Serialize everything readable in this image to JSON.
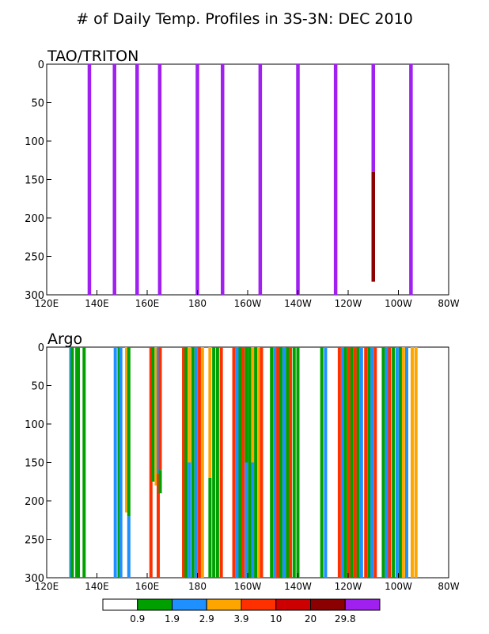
{
  "title": "# of Daily Temp. Profiles in 3S-3N: DEC 2010",
  "chart_data": [
    {
      "type": "bar",
      "panel": "TAO/TRITON",
      "xlim": [
        120,
        280
      ],
      "ylim": [
        0,
        300
      ],
      "yaxis_inverted": true,
      "grid": false,
      "x_ticks": [
        120,
        140,
        160,
        180,
        200,
        220,
        240,
        260,
        280
      ],
      "x_tick_labels": [
        "120E",
        "140E",
        "160E",
        "180",
        "160W",
        "140W",
        "120W",
        "100W",
        "80W"
      ],
      "y_ticks": [
        0,
        50,
        100,
        150,
        200,
        250,
        300
      ],
      "bars": [
        {
          "lon": 137,
          "segments": [
            {
              "top": 0,
              "bottom": 300,
              "color": "#a020f0"
            }
          ]
        },
        {
          "lon": 147,
          "segments": [
            {
              "top": 0,
              "bottom": 300,
              "color": "#a020f0"
            }
          ]
        },
        {
          "lon": 156,
          "segments": [
            {
              "top": 0,
              "bottom": 300,
              "color": "#a020f0"
            }
          ]
        },
        {
          "lon": 165,
          "segments": [
            {
              "top": 0,
              "bottom": 300,
              "color": "#a020f0"
            }
          ]
        },
        {
          "lon": 180,
          "segments": [
            {
              "top": 0,
              "bottom": 300,
              "color": "#a020f0"
            }
          ]
        },
        {
          "lon": 190,
          "segments": [
            {
              "top": 0,
              "bottom": 300,
              "color": "#a020f0"
            }
          ]
        },
        {
          "lon": 205,
          "segments": [
            {
              "top": 0,
              "bottom": 300,
              "color": "#a020f0"
            }
          ]
        },
        {
          "lon": 220,
          "segments": [
            {
              "top": 0,
              "bottom": 300,
              "color": "#a020f0"
            }
          ]
        },
        {
          "lon": 235,
          "segments": [
            {
              "top": 0,
              "bottom": 300,
              "color": "#a020f0"
            }
          ]
        },
        {
          "lon": 250,
          "segments": [
            {
              "top": 0,
              "bottom": 140,
              "color": "#a020f0"
            },
            {
              "top": 140,
              "bottom": 283,
              "color": "#8b0000"
            }
          ]
        },
        {
          "lon": 265,
          "segments": [
            {
              "top": 0,
              "bottom": 300,
              "color": "#a020f0"
            }
          ]
        }
      ]
    },
    {
      "type": "bar",
      "panel": "Argo",
      "xlim": [
        120,
        280
      ],
      "ylim": [
        0,
        300
      ],
      "yaxis_inverted": true,
      "grid": false,
      "x_ticks": [
        120,
        140,
        160,
        180,
        200,
        220,
        240,
        260,
        280
      ],
      "x_tick_labels": [
        "120E",
        "140E",
        "160E",
        "180",
        "160W",
        "140W",
        "120W",
        "100W",
        "80W"
      ],
      "y_ticks": [
        0,
        50,
        100,
        150,
        200,
        250,
        300
      ],
      "bars": [
        {
          "lon": 129.6,
          "segments": [
            {
              "top": 0,
              "bottom": 300,
              "color": "#1e90ff"
            }
          ]
        },
        {
          "lon": 130.2,
          "segments": [
            {
              "top": 0,
              "bottom": 300,
              "color": "#00a000"
            }
          ]
        },
        {
          "lon": 132.0,
          "segments": [
            {
              "top": 0,
              "bottom": 300,
              "color": "#00a000"
            }
          ]
        },
        {
          "lon": 132.6,
          "segments": [
            {
              "top": 0,
              "bottom": 300,
              "color": "#00a000"
            }
          ]
        },
        {
          "lon": 134.9,
          "segments": [
            {
              "top": 0,
              "bottom": 300,
              "color": "#00a000"
            }
          ]
        },
        {
          "lon": 147.3,
          "segments": [
            {
              "top": 0,
              "bottom": 300,
              "color": "#1e90ff"
            }
          ]
        },
        {
          "lon": 148.8,
          "segments": [
            {
              "top": 0,
              "bottom": 300,
              "color": "#00a000"
            }
          ]
        },
        {
          "lon": 149.5,
          "segments": [
            {
              "top": 0,
              "bottom": 300,
              "color": "#1e90ff"
            }
          ]
        },
        {
          "lon": 151.8,
          "segments": [
            {
              "top": 0,
              "bottom": 215,
              "color": "#ffa500"
            },
            {
              "top": 215,
              "bottom": 300,
              "color": "#ffffff"
            }
          ]
        },
        {
          "lon": 152.7,
          "segments": [
            {
              "top": 0,
              "bottom": 220,
              "color": "#00a000"
            },
            {
              "top": 220,
              "bottom": 300,
              "color": "#1e90ff"
            }
          ]
        },
        {
          "lon": 161.5,
          "segments": [
            {
              "top": 0,
              "bottom": 300,
              "color": "#ff3000"
            }
          ]
        },
        {
          "lon": 162.3,
          "segments": [
            {
              "top": 0,
              "bottom": 175,
              "color": "#00a000"
            },
            {
              "top": 175,
              "bottom": 300,
              "color": "#ffffff"
            }
          ]
        },
        {
          "lon": 163.6,
          "segments": [
            {
              "top": 0,
              "bottom": 180,
              "color": "#ffa500"
            },
            {
              "top": 180,
              "bottom": 300,
              "color": "#ffffff"
            }
          ]
        },
        {
          "lon": 164.4,
          "segments": [
            {
              "top": 0,
              "bottom": 165,
              "color": "#1e90ff"
            },
            {
              "top": 165,
              "bottom": 300,
              "color": "#ff3000"
            }
          ]
        },
        {
          "lon": 165.2,
          "segments": [
            {
              "top": 0,
              "bottom": 160,
              "color": "#ff3000"
            },
            {
              "top": 160,
              "bottom": 190,
              "color": "#00a000"
            },
            {
              "top": 190,
              "bottom": 300,
              "color": "#ffffff"
            }
          ]
        },
        {
          "lon": 174.5,
          "segments": [
            {
              "top": 0,
              "bottom": 300,
              "color": "#ff3000"
            }
          ]
        },
        {
          "lon": 175.5,
          "segments": [
            {
              "top": 0,
              "bottom": 300,
              "color": "#00a000"
            }
          ]
        },
        {
          "lon": 176.8,
          "segments": [
            {
              "top": 0,
              "bottom": 150,
              "color": "#ffa500"
            },
            {
              "top": 150,
              "bottom": 300,
              "color": "#1e90ff"
            }
          ]
        },
        {
          "lon": 178.2,
          "segments": [
            {
              "top": 0,
              "bottom": 300,
              "color": "#00a000"
            }
          ]
        },
        {
          "lon": 179.5,
          "segments": [
            {
              "top": 0,
              "bottom": 300,
              "color": "#1e90ff"
            }
          ]
        },
        {
          "lon": 180.8,
          "segments": [
            {
              "top": 0,
              "bottom": 300,
              "color": "#ff3000"
            }
          ]
        },
        {
          "lon": 182.0,
          "segments": [
            {
              "top": 0,
              "bottom": 300,
              "color": "#ffa500"
            }
          ]
        },
        {
          "lon": 185.0,
          "segments": [
            {
              "top": 0,
              "bottom": 170,
              "color": "#ffa500"
            },
            {
              "top": 170,
              "bottom": 300,
              "color": "#00a000"
            }
          ]
        },
        {
          "lon": 186.5,
          "segments": [
            {
              "top": 0,
              "bottom": 300,
              "color": "#00a000"
            }
          ]
        },
        {
          "lon": 188.0,
          "segments": [
            {
              "top": 0,
              "bottom": 300,
              "color": "#00a000"
            }
          ]
        },
        {
          "lon": 189.5,
          "segments": [
            {
              "top": 0,
              "bottom": 300,
              "color": "#ff3000"
            }
          ]
        },
        {
          "lon": 194.5,
          "segments": [
            {
              "top": 0,
              "bottom": 300,
              "color": "#ff3000"
            }
          ]
        },
        {
          "lon": 195.8,
          "segments": [
            {
              "top": 0,
              "bottom": 300,
              "color": "#1e90ff"
            }
          ]
        },
        {
          "lon": 197.0,
          "segments": [
            {
              "top": 0,
              "bottom": 300,
              "color": "#00a000"
            }
          ]
        },
        {
          "lon": 198.2,
          "segments": [
            {
              "top": 0,
              "bottom": 300,
              "color": "#ff3000"
            }
          ]
        },
        {
          "lon": 199.5,
          "segments": [
            {
              "top": 0,
              "bottom": 150,
              "color": "#00a000"
            },
            {
              "top": 150,
              "bottom": 300,
              "color": "#1e90ff"
            }
          ]
        },
        {
          "lon": 200.8,
          "segments": [
            {
              "top": 0,
              "bottom": 300,
              "color": "#00a000"
            }
          ]
        },
        {
          "lon": 202.0,
          "segments": [
            {
              "top": 0,
              "bottom": 150,
              "color": "#ffa500"
            },
            {
              "top": 150,
              "bottom": 300,
              "color": "#1e90ff"
            }
          ]
        },
        {
          "lon": 203.2,
          "segments": [
            {
              "top": 0,
              "bottom": 300,
              "color": "#00a000"
            }
          ]
        },
        {
          "lon": 204.5,
          "segments": [
            {
              "top": 0,
              "bottom": 300,
              "color": "#ffa500"
            }
          ]
        },
        {
          "lon": 205.5,
          "segments": [
            {
              "top": 0,
              "bottom": 300,
              "color": "#ff3000"
            }
          ]
        },
        {
          "lon": 209.5,
          "segments": [
            {
              "top": 0,
              "bottom": 300,
              "color": "#00a000"
            }
          ]
        },
        {
          "lon": 210.8,
          "segments": [
            {
              "top": 0,
              "bottom": 300,
              "color": "#1e90ff"
            }
          ]
        },
        {
          "lon": 212.0,
          "segments": [
            {
              "top": 0,
              "bottom": 300,
              "color": "#ff3000"
            }
          ]
        },
        {
          "lon": 213.2,
          "segments": [
            {
              "top": 0,
              "bottom": 300,
              "color": "#00a000"
            }
          ]
        },
        {
          "lon": 214.5,
          "segments": [
            {
              "top": 0,
              "bottom": 300,
              "color": "#1e90ff"
            }
          ]
        },
        {
          "lon": 215.8,
          "segments": [
            {
              "top": 0,
              "bottom": 300,
              "color": "#00a000"
            }
          ]
        },
        {
          "lon": 217.0,
          "segments": [
            {
              "top": 0,
              "bottom": 300,
              "color": "#ff3000"
            }
          ]
        },
        {
          "lon": 218.5,
          "segments": [
            {
              "top": 0,
              "bottom": 300,
              "color": "#00a000"
            }
          ]
        },
        {
          "lon": 220.0,
          "segments": [
            {
              "top": 0,
              "bottom": 300,
              "color": "#00a000"
            }
          ]
        },
        {
          "lon": 229.5,
          "segments": [
            {
              "top": 0,
              "bottom": 300,
              "color": "#00a000"
            }
          ]
        },
        {
          "lon": 231.0,
          "segments": [
            {
              "top": 0,
              "bottom": 300,
              "color": "#1e90ff"
            }
          ]
        },
        {
          "lon": 236.5,
          "segments": [
            {
              "top": 0,
              "bottom": 300,
              "color": "#ff3000"
            }
          ]
        },
        {
          "lon": 237.8,
          "segments": [
            {
              "top": 0,
              "bottom": 300,
              "color": "#1e90ff"
            }
          ]
        },
        {
          "lon": 239.0,
          "segments": [
            {
              "top": 0,
              "bottom": 300,
              "color": "#00a000"
            }
          ]
        },
        {
          "lon": 240.3,
          "segments": [
            {
              "top": 0,
              "bottom": 300,
              "color": "#ff3000"
            }
          ]
        },
        {
          "lon": 241.5,
          "segments": [
            {
              "top": 0,
              "bottom": 300,
              "color": "#00a000"
            }
          ]
        },
        {
          "lon": 242.8,
          "segments": [
            {
              "top": 0,
              "bottom": 300,
              "color": "#ff3000"
            }
          ]
        },
        {
          "lon": 244.0,
          "segments": [
            {
              "top": 0,
              "bottom": 300,
              "color": "#00a000"
            }
          ]
        },
        {
          "lon": 245.3,
          "segments": [
            {
              "top": 0,
              "bottom": 300,
              "color": "#1e90ff"
            }
          ]
        },
        {
          "lon": 247.0,
          "segments": [
            {
              "top": 0,
              "bottom": 300,
              "color": "#ff3000"
            }
          ]
        },
        {
          "lon": 248.3,
          "segments": [
            {
              "top": 0,
              "bottom": 300,
              "color": "#00a000"
            }
          ]
        },
        {
          "lon": 249.5,
          "segments": [
            {
              "top": 0,
              "bottom": 300,
              "color": "#1e90ff"
            }
          ]
        },
        {
          "lon": 250.8,
          "segments": [
            {
              "top": 0,
              "bottom": 300,
              "color": "#ff3000"
            }
          ]
        },
        {
          "lon": 254.0,
          "segments": [
            {
              "top": 0,
              "bottom": 300,
              "color": "#00a000"
            }
          ]
        },
        {
          "lon": 255.3,
          "segments": [
            {
              "top": 0,
              "bottom": 300,
              "color": "#1e90ff"
            }
          ]
        },
        {
          "lon": 256.5,
          "segments": [
            {
              "top": 0,
              "bottom": 300,
              "color": "#ff3000"
            }
          ]
        },
        {
          "lon": 258.0,
          "segments": [
            {
              "top": 0,
              "bottom": 300,
              "color": "#00a000"
            }
          ]
        },
        {
          "lon": 259.5,
          "segments": [
            {
              "top": 0,
              "bottom": 300,
              "color": "#1e90ff"
            }
          ]
        },
        {
          "lon": 260.8,
          "segments": [
            {
              "top": 0,
              "bottom": 300,
              "color": "#00a000"
            }
          ]
        },
        {
          "lon": 262.0,
          "segments": [
            {
              "top": 0,
              "bottom": 300,
              "color": "#ffa500"
            }
          ]
        },
        {
          "lon": 263.3,
          "segments": [
            {
              "top": 0,
              "bottom": 300,
              "color": "#1e90ff"
            }
          ]
        },
        {
          "lon": 265.5,
          "segments": [
            {
              "top": 0,
              "bottom": 300,
              "color": "#ffa500"
            }
          ]
        },
        {
          "lon": 267.0,
          "segments": [
            {
              "top": 0,
              "bottom": 300,
              "color": "#ffa500"
            }
          ]
        }
      ]
    }
  ],
  "legend": {
    "boxes": [
      {
        "color": "#ffffff"
      },
      {
        "color": "#00a000"
      },
      {
        "color": "#1e90ff"
      },
      {
        "color": "#ffa500"
      },
      {
        "color": "#ff3000"
      },
      {
        "color": "#cc0000"
      },
      {
        "color": "#8b0000"
      },
      {
        "color": "#a020f0"
      }
    ],
    "labels": [
      "0.9",
      "1.9",
      "2.9",
      "3.9",
      "10",
      "20",
      "29.8"
    ]
  }
}
